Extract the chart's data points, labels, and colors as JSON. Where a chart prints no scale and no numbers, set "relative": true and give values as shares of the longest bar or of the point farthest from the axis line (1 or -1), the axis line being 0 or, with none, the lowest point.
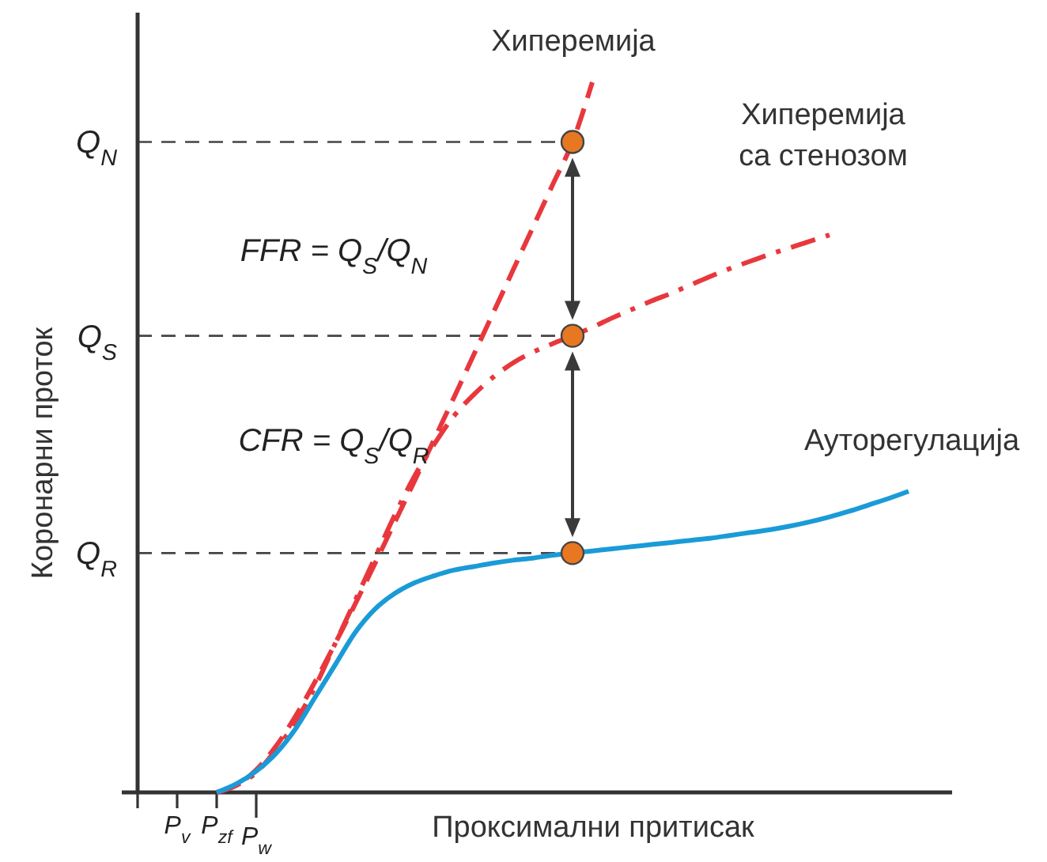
{
  "chart_data": {
    "type": "line",
    "relative": true,
    "xlabel": "Проксимални притисак",
    "ylabel": "Коронарни проток",
    "categories": [
      null,
      null,
      "P$_{v}$",
      null,
      "P$_{zf}$",
      null,
      "P$_{w}$",
      null,
      null,
      null,
      null,
      null,
      null,
      null,
      null,
      null,
      null,
      null,
      null,
      null,
      null,
      null,
      null,
      null,
      null,
      null,
      null,
      null,
      null,
      null,
      null,
      null,
      null,
      null,
      null,
      null,
      null,
      null,
      null,
      null,
      null
    ],
    "legend": false,
    "series": [
      {
        "name": "Хиперемија",
        "color": "#e8383d",
        "line_style": "dashed",
        "values": [
          null,
          null,
          null,
          null,
          0,
          0.01,
          0.032,
          0.065,
          0.108,
          0.157,
          0.21,
          0.265,
          0.322,
          0.38,
          0.438,
          0.497,
          0.556,
          0.616,
          0.676,
          0.736,
          0.796,
          0.856,
          0.916,
          1,
          null,
          null,
          null,
          null,
          null,
          null,
          null,
          null,
          null,
          null,
          null,
          null,
          null,
          null,
          null,
          null,
          null
        ]
      },
      {
        "name": "Хиперемија са стенозом",
        "color": "#e8383d",
        "line_style": "dashdot",
        "values": [
          null,
          null,
          null,
          null,
          0,
          0.01,
          0.028,
          0.06,
          0.1,
          0.15,
          0.21,
          0.27,
          0.33,
          0.39,
          0.445,
          0.49,
          0.53,
          0.56,
          0.585,
          0.605,
          0.62,
          0.632,
          0.643,
          0.655,
          0.668,
          0.68,
          0.692,
          0.703,
          0.715,
          0.727,
          0.738,
          0.748,
          0.758,
          0.767,
          0.776,
          0.785,
          null,
          null,
          null,
          null,
          null
        ]
      },
      {
        "name": "Ауторегулација",
        "color": "#1a9bd7",
        "line_style": "solid",
        "values": [
          null,
          null,
          null,
          null,
          0,
          0.012,
          0.03,
          0.055,
          0.09,
          0.135,
          0.18,
          0.225,
          0.258,
          0.28,
          0.295,
          0.305,
          0.313,
          0.318,
          0.323,
          0.327,
          0.33,
          0.334,
          0.337,
          0.34,
          0.343,
          0.346,
          0.349,
          0.352,
          0.355,
          0.358,
          0.362,
          0.366,
          0.37,
          0.375,
          0.381,
          0.388,
          0.396,
          0.405,
          0.414,
          0.424,
          null
        ]
      },
      {
        "type": "scatter",
        "color": "#e87722",
        "marker": "circle",
        "values": [
          null,
          null,
          null,
          null,
          null,
          null,
          null,
          null,
          null,
          null,
          null,
          null,
          null,
          null,
          null,
          null,
          null,
          null,
          null,
          null,
          null,
          null,
          0.916,
          null,
          null,
          null,
          null,
          null,
          null,
          null,
          null,
          null,
          null,
          null,
          null,
          null,
          null,
          null,
          null,
          null,
          null
        ]
      },
      {
        "type": "scatter",
        "color": "#e87722",
        "marker": "circle",
        "values": [
          null,
          null,
          null,
          null,
          null,
          null,
          null,
          null,
          null,
          null,
          null,
          null,
          null,
          null,
          null,
          null,
          null,
          null,
          null,
          null,
          null,
          null,
          0.643,
          null,
          null,
          null,
          null,
          null,
          null,
          null,
          null,
          null,
          null,
          null,
          null,
          null,
          null,
          null,
          null,
          null,
          null
        ]
      },
      {
        "type": "scatter",
        "color": "#e87722",
        "marker": "circle",
        "values": [
          null,
          null,
          null,
          null,
          null,
          null,
          null,
          null,
          null,
          null,
          null,
          null,
          null,
          null,
          null,
          null,
          null,
          null,
          null,
          null,
          null,
          null,
          0.337,
          null,
          null,
          null,
          null,
          null,
          null,
          null,
          null,
          null,
          null,
          null,
          null,
          null,
          null,
          null,
          null,
          null,
          null
        ]
      }
    ],
    "ref_lines": [
      {
        "axis": "y",
        "value": 0.916,
        "label": "Q$_{N}$",
        "color": "#444444",
        "line_style": "dashed"
      },
      {
        "axis": "y",
        "value": 0.643,
        "label": "Q$_{S}$",
        "color": "#444444",
        "line_style": "dashed"
      },
      {
        "axis": "y",
        "value": 0.337,
        "label": "Q$_{R}$",
        "color": "#444444",
        "line_style": "dashed"
      }
    ],
    "annotations": [
      "FFR = Q$_{S}$/Q$_{N}$",
      "CFR = Q$_{S}$/Q$_{R}$"
    ]
  }
}
